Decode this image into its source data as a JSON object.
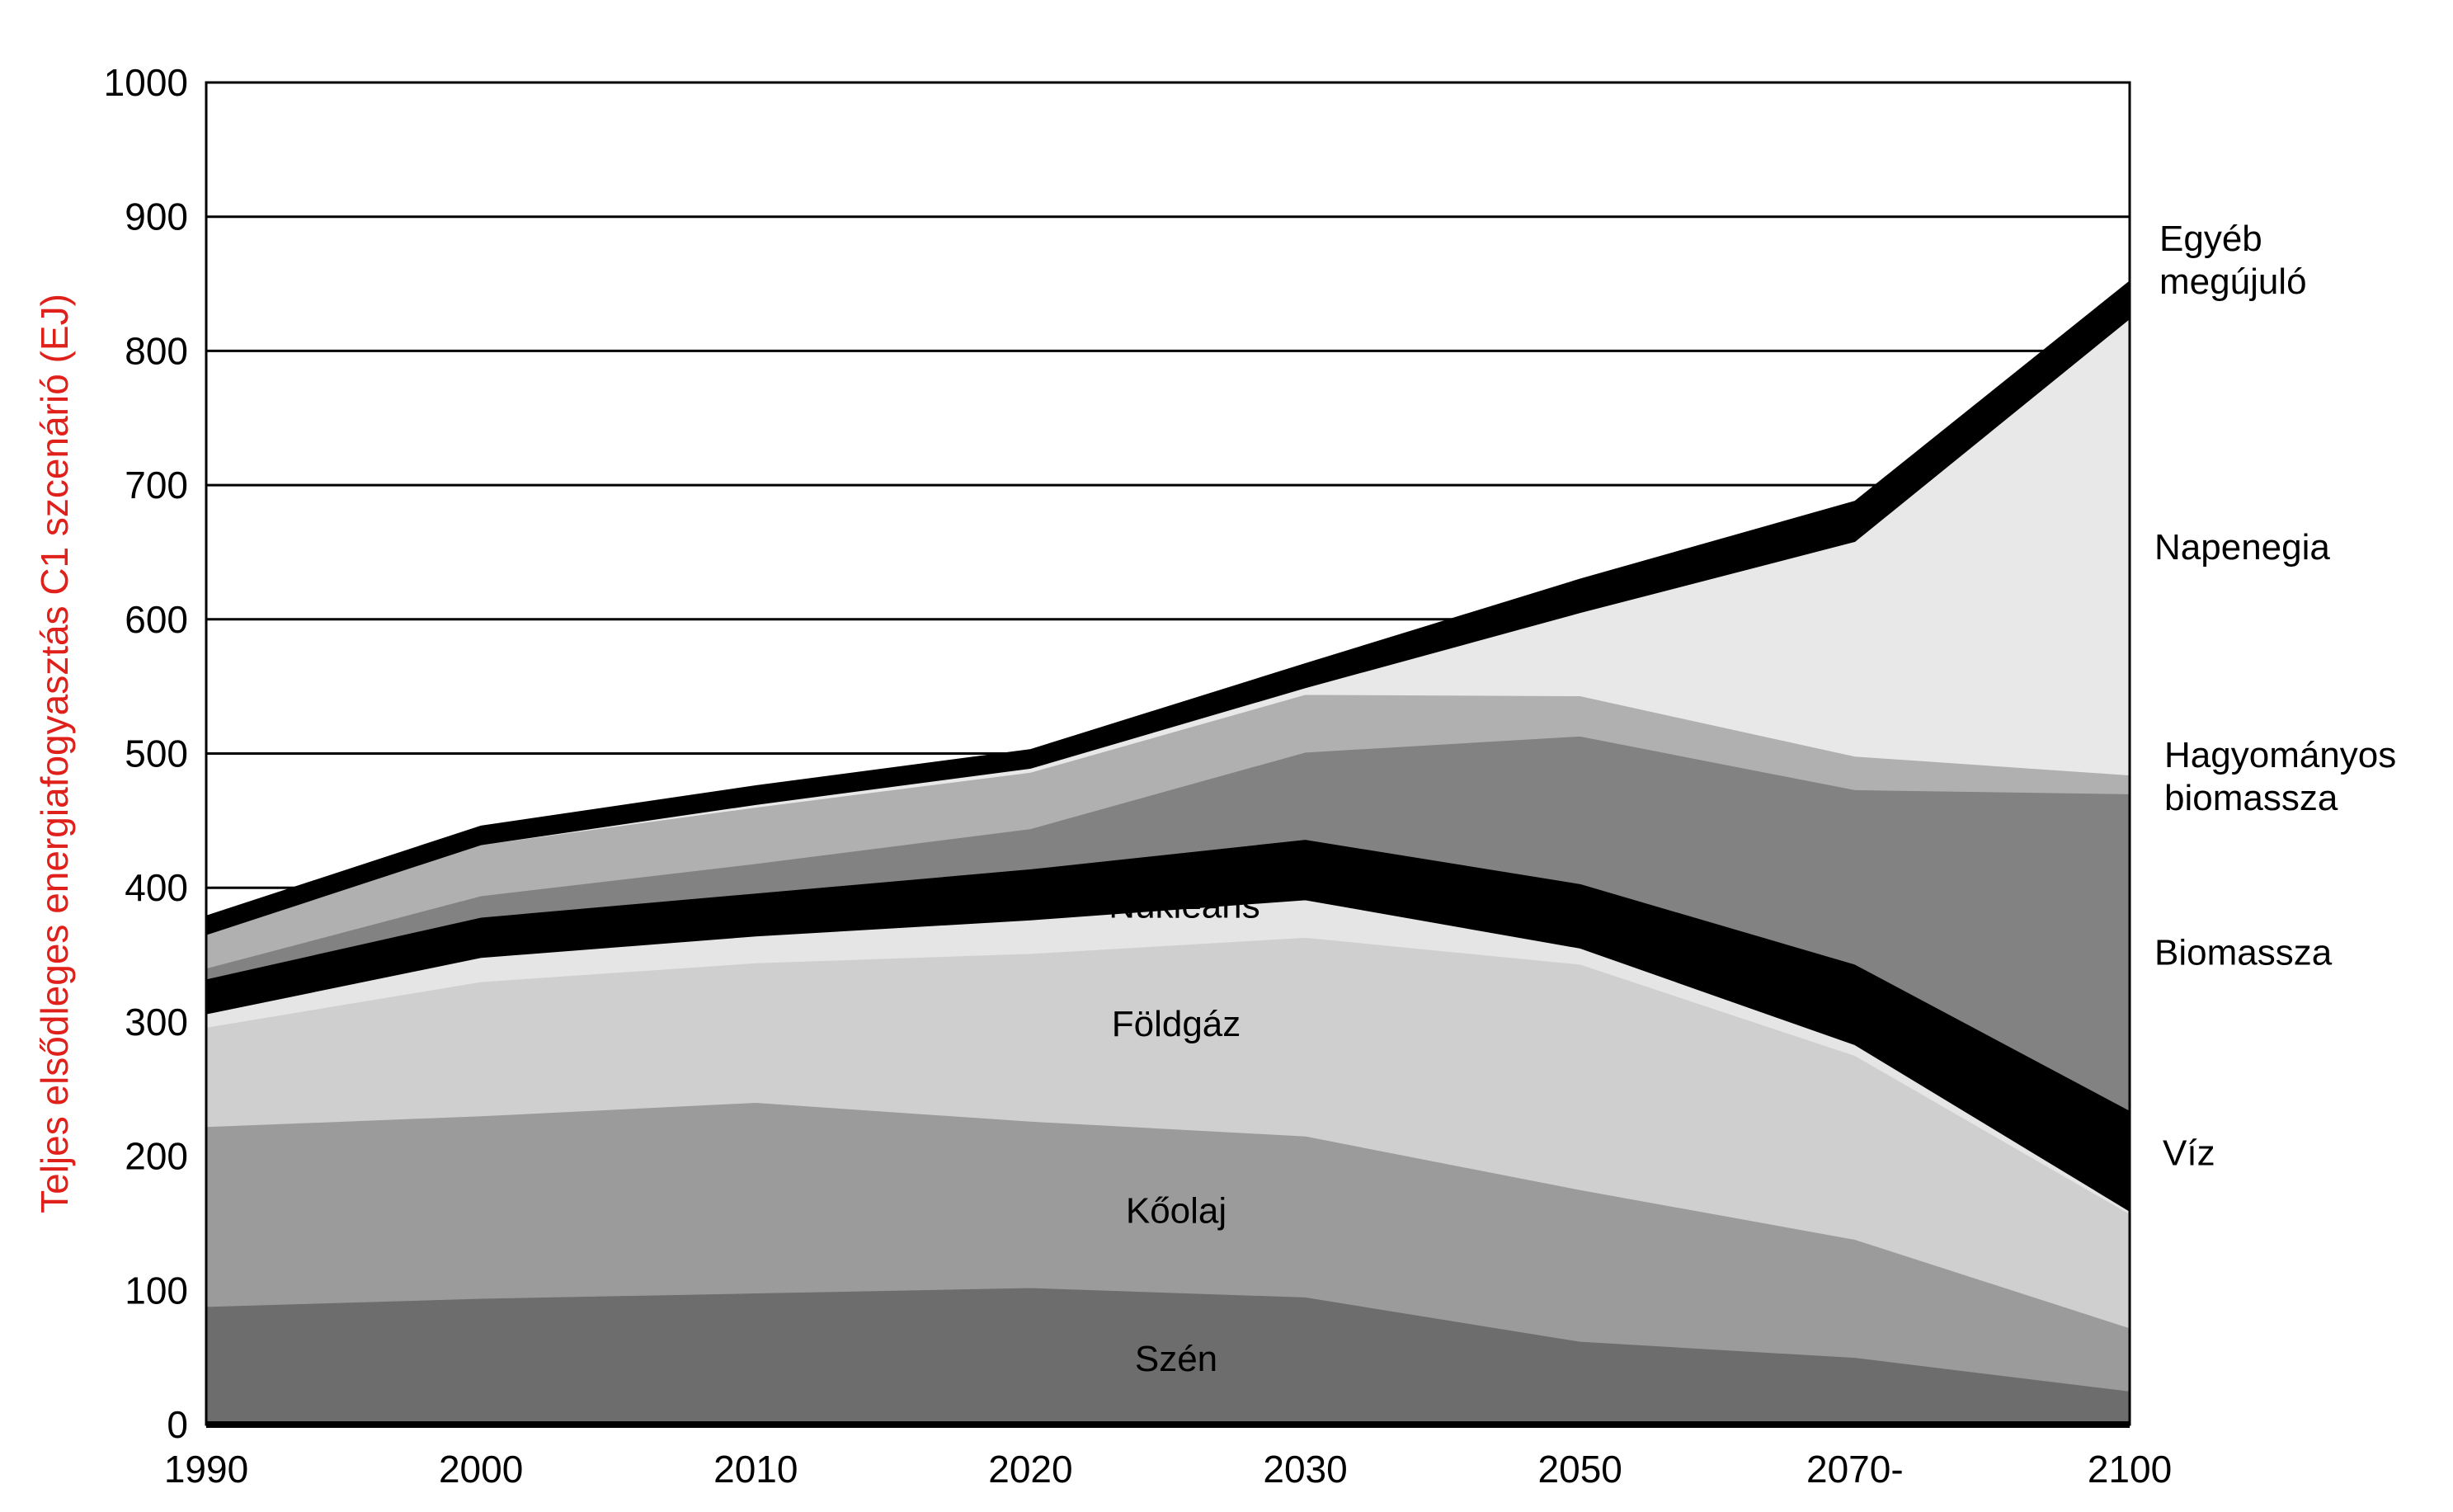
{
  "chart_data": {
    "type": "area",
    "stacked": true,
    "title": "",
    "xlabel": "",
    "ylabel": "Teljes elsődleges energiafogyasztás C1 szcenárió (EJ)",
    "ylabel_color": "#e0201a",
    "categories": [
      "1990",
      "2000",
      "2010",
      "2020",
      "2030",
      "2050",
      "2070-",
      "2100"
    ],
    "y_ticks": [
      "0",
      "100",
      "200",
      "300",
      "400",
      "500",
      "600",
      "700",
      "800",
      "900",
      "1000"
    ],
    "ylim": [
      0,
      1000
    ],
    "grid": "horizontal",
    "series": [
      {
        "name": "Szén",
        "label": "Szén",
        "color": "#6d6d6d",
        "values": [
          88,
          94,
          98,
          102,
          95,
          62,
          50,
          25
        ]
      },
      {
        "name": "Kőolaj",
        "label": "Kőolaj",
        "color": "#9b9b9b",
        "values": [
          134,
          136,
          142,
          124,
          120,
          113,
          88,
          47
        ]
      },
      {
        "name": "Földgáz",
        "label": "Földgáz",
        "color": "#cfcfcf",
        "values": [
          74,
          100,
          104,
          125,
          148,
          168,
          137,
          85
        ]
      },
      {
        "name": "Nukleáris",
        "label": "Nukleáris",
        "color": "#e5e5e5",
        "values": [
          10,
          18,
          20,
          25,
          28,
          12,
          8,
          2
        ]
      },
      {
        "name": "Víz",
        "label": "Víz",
        "color": "#000000",
        "values": [
          26,
          30,
          32,
          38,
          45,
          48,
          60,
          75
        ]
      },
      {
        "name": "Biomassza",
        "label": "Biomassza",
        "color": "#828282",
        "values": [
          8,
          16,
          22,
          30,
          65,
          110,
          130,
          236
        ]
      },
      {
        "name": "Hagyományos biomassza",
        "label": [
          "Hagyományos",
          "biomassza"
        ],
        "color": "#b0b0b0",
        "values": [
          25,
          38,
          42,
          42,
          43,
          30,
          25,
          14
        ]
      },
      {
        "name": "Napenegia",
        "label": "Napenegia",
        "color": "#e8e8e8",
        "values": [
          0,
          0,
          2,
          3,
          5,
          62,
          160,
          340
        ]
      },
      {
        "name": "Egyéb megújuló",
        "label": [
          "Egyéb",
          "megújuló"
        ],
        "color": "#000000",
        "values": [
          14,
          14,
          14,
          14,
          18,
          25,
          30,
          28
        ]
      }
    ]
  }
}
